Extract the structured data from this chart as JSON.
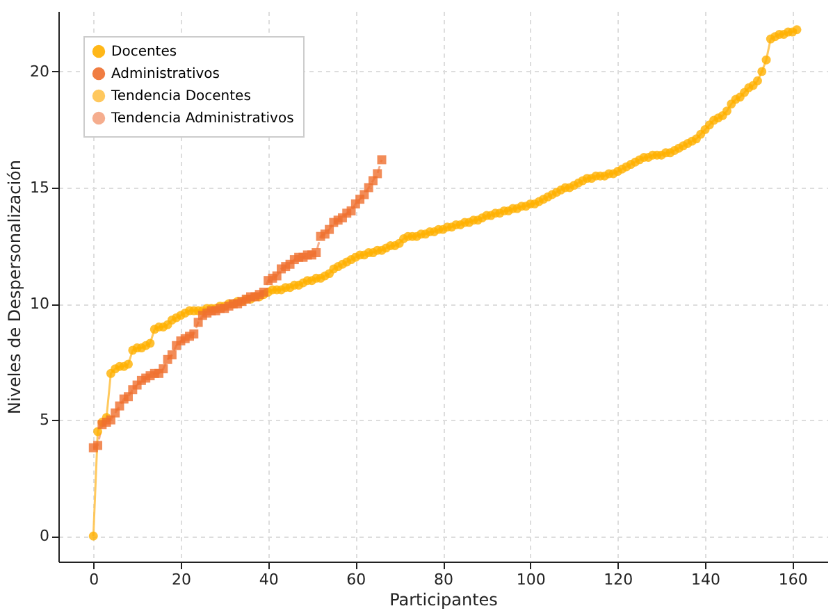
{
  "chart_data": {
    "type": "scatter",
    "xlabel": "Participantes",
    "ylabel": "Niveles de Despersonalización",
    "xlim": [
      -8,
      168
    ],
    "ylim": [
      -1.1,
      22.6
    ],
    "xticks": [
      0,
      20,
      40,
      60,
      80,
      100,
      120,
      140,
      160
    ],
    "yticks": [
      0,
      5,
      10,
      15,
      20
    ],
    "grid": true,
    "legend": "top left",
    "series": [
      {
        "name": "Docentes",
        "marker": "circle",
        "color": "#ffb000",
        "x": [
          0,
          1,
          2,
          3,
          4,
          5,
          6,
          7,
          8,
          9,
          10,
          11,
          12,
          13,
          14,
          15,
          16,
          17,
          18,
          19,
          20,
          21,
          22,
          23,
          24,
          25,
          26,
          27,
          28,
          29,
          30,
          31,
          32,
          33,
          34,
          35,
          36,
          37,
          38,
          39,
          40,
          41,
          42,
          43,
          44,
          45,
          46,
          47,
          48,
          49,
          50,
          51,
          52,
          53,
          54,
          55,
          56,
          57,
          58,
          59,
          60,
          61,
          62,
          63,
          64,
          65,
          66,
          67,
          68,
          69,
          70,
          71,
          72,
          73,
          74,
          75,
          76,
          77,
          78,
          79,
          80,
          81,
          82,
          83,
          84,
          85,
          86,
          87,
          88,
          89,
          90,
          91,
          92,
          93,
          94,
          95,
          96,
          97,
          98,
          99,
          100,
          101,
          102,
          103,
          104,
          105,
          106,
          107,
          108,
          109,
          110,
          111,
          112,
          113,
          114,
          115,
          116,
          117,
          118,
          119,
          120,
          121,
          122,
          123,
          124,
          125,
          126,
          127,
          128,
          129,
          130,
          131,
          132,
          133,
          134,
          135,
          136,
          137,
          138,
          139,
          140,
          141,
          142,
          143,
          144,
          145,
          146,
          147,
          148,
          149,
          150,
          151,
          152,
          153,
          154,
          155,
          156,
          157,
          158,
          159,
          160,
          161
        ],
        "values": [
          0,
          4.5,
          4.9,
          5.1,
          7.0,
          7.2,
          7.3,
          7.3,
          7.4,
          8.0,
          8.1,
          8.1,
          8.2,
          8.3,
          8.9,
          9.0,
          9.0,
          9.1,
          9.3,
          9.4,
          9.5,
          9.6,
          9.7,
          9.7,
          9.7,
          9.7,
          9.8,
          9.8,
          9.8,
          9.9,
          9.9,
          10.0,
          10.0,
          10.1,
          10.1,
          10.2,
          10.2,
          10.3,
          10.3,
          10.4,
          10.5,
          10.6,
          10.6,
          10.6,
          10.7,
          10.7,
          10.8,
          10.8,
          10.9,
          11.0,
          11.0,
          11.1,
          11.1,
          11.2,
          11.3,
          11.5,
          11.6,
          11.7,
          11.8,
          11.9,
          12.0,
          12.1,
          12.1,
          12.2,
          12.2,
          12.3,
          12.3,
          12.4,
          12.5,
          12.5,
          12.6,
          12.8,
          12.9,
          12.9,
          12.9,
          13.0,
          13.0,
          13.1,
          13.1,
          13.2,
          13.2,
          13.3,
          13.3,
          13.4,
          13.4,
          13.5,
          13.5,
          13.6,
          13.6,
          13.7,
          13.8,
          13.8,
          13.9,
          13.9,
          14.0,
          14.0,
          14.1,
          14.1,
          14.2,
          14.2,
          14.3,
          14.3,
          14.4,
          14.5,
          14.6,
          14.7,
          14.8,
          14.9,
          15.0,
          15.0,
          15.1,
          15.2,
          15.3,
          15.4,
          15.4,
          15.5,
          15.5,
          15.5,
          15.6,
          15.6,
          15.7,
          15.8,
          15.9,
          16.0,
          16.1,
          16.2,
          16.3,
          16.3,
          16.4,
          16.4,
          16.4,
          16.5,
          16.5,
          16.6,
          16.7,
          16.8,
          16.9,
          17.0,
          17.1,
          17.3,
          17.5,
          17.7,
          17.9,
          18.0,
          18.1,
          18.3,
          18.6,
          18.8,
          18.9,
          19.1,
          19.3,
          19.4,
          19.6,
          20.0,
          20.5,
          21.4,
          21.5,
          21.6,
          21.6,
          21.7,
          21.7,
          21.8
        ]
      },
      {
        "name": "Administrativos",
        "marker": "square",
        "color": "#ef6f2e",
        "x": [
          0,
          1,
          2,
          3,
          4,
          5,
          6,
          7,
          8,
          9,
          10,
          11,
          12,
          13,
          14,
          15,
          16,
          17,
          18,
          19,
          20,
          21,
          22,
          23,
          24,
          25,
          26,
          27,
          28,
          29,
          30,
          31,
          32,
          33,
          34,
          35,
          36,
          37,
          38,
          39,
          40,
          41,
          42,
          43,
          44,
          45,
          46,
          47,
          48,
          49,
          50,
          51,
          52,
          53,
          54,
          55,
          56,
          57,
          58,
          59,
          60,
          61,
          62,
          63,
          64,
          65,
          66
        ],
        "values": [
          3.8,
          3.9,
          4.8,
          4.9,
          5.0,
          5.3,
          5.6,
          5.9,
          6.0,
          6.3,
          6.5,
          6.7,
          6.8,
          6.9,
          7.0,
          7.0,
          7.2,
          7.6,
          7.8,
          8.2,
          8.4,
          8.5,
          8.6,
          8.7,
          9.2,
          9.5,
          9.6,
          9.7,
          9.7,
          9.8,
          9.8,
          9.9,
          10.0,
          10.0,
          10.1,
          10.2,
          10.3,
          10.3,
          10.4,
          10.5,
          11.0,
          11.1,
          11.2,
          11.5,
          11.6,
          11.7,
          11.9,
          12.0,
          12.0,
          12.1,
          12.1,
          12.2,
          12.9,
          13.0,
          13.2,
          13.5,
          13.6,
          13.7,
          13.9,
          14.0,
          14.3,
          14.5,
          14.7,
          15.0,
          15.3,
          15.6,
          16.2
        ]
      },
      {
        "name": "Tendencia Docentes",
        "type": "line",
        "line_style": "solid",
        "color": "#ffc34d",
        "x": [
          0,
          1,
          2,
          3,
          4,
          5,
          6,
          7,
          8,
          9,
          10,
          11,
          12,
          13,
          14,
          15,
          16,
          17,
          18,
          19,
          20,
          21,
          22,
          23,
          24,
          25,
          26,
          27,
          28,
          29,
          30,
          31,
          32,
          33,
          34,
          35,
          36,
          37,
          38,
          39,
          40,
          41,
          42,
          43,
          44,
          45,
          46,
          47,
          48,
          49,
          50,
          51,
          52,
          53,
          54,
          55,
          56,
          57,
          58,
          59,
          60,
          61,
          62,
          63,
          64,
          65,
          66,
          67,
          68,
          69,
          70,
          71,
          72,
          73,
          74,
          75,
          76,
          77,
          78,
          79,
          80,
          81,
          82,
          83,
          84,
          85,
          86,
          87,
          88,
          89,
          90,
          91,
          92,
          93,
          94,
          95,
          96,
          97,
          98,
          99,
          100,
          101,
          102,
          103,
          104,
          105,
          106,
          107,
          108,
          109,
          110,
          111,
          112,
          113,
          114,
          115,
          116,
          117,
          118,
          119,
          120,
          121,
          122,
          123,
          124,
          125,
          126,
          127,
          128,
          129,
          130,
          131,
          132,
          133,
          134,
          135,
          136,
          137,
          138,
          139,
          140,
          141,
          142,
          143,
          144,
          145,
          146,
          147,
          148,
          149,
          150,
          151,
          152,
          153,
          154,
          155,
          156,
          157,
          158,
          159,
          160,
          161
        ],
        "values": [
          0,
          4.5,
          4.9,
          5.1,
          7.0,
          7.2,
          7.3,
          7.3,
          7.4,
          8.0,
          8.1,
          8.1,
          8.2,
          8.3,
          8.9,
          9.0,
          9.0,
          9.1,
          9.3,
          9.4,
          9.5,
          9.6,
          9.7,
          9.7,
          9.7,
          9.7,
          9.8,
          9.8,
          9.8,
          9.9,
          9.9,
          10.0,
          10.0,
          10.1,
          10.1,
          10.2,
          10.2,
          10.3,
          10.3,
          10.4,
          10.5,
          10.6,
          10.6,
          10.6,
          10.7,
          10.7,
          10.8,
          10.8,
          10.9,
          11.0,
          11.0,
          11.1,
          11.1,
          11.2,
          11.3,
          11.5,
          11.6,
          11.7,
          11.8,
          11.9,
          12.0,
          12.1,
          12.1,
          12.2,
          12.2,
          12.3,
          12.3,
          12.4,
          12.5,
          12.5,
          12.6,
          12.8,
          12.9,
          12.9,
          12.9,
          13.0,
          13.0,
          13.1,
          13.1,
          13.2,
          13.2,
          13.3,
          13.3,
          13.4,
          13.4,
          13.5,
          13.5,
          13.6,
          13.6,
          13.7,
          13.8,
          13.8,
          13.9,
          13.9,
          14.0,
          14.0,
          14.1,
          14.1,
          14.2,
          14.2,
          14.3,
          14.3,
          14.4,
          14.5,
          14.6,
          14.7,
          14.8,
          14.9,
          15.0,
          15.0,
          15.1,
          15.2,
          15.3,
          15.4,
          15.4,
          15.5,
          15.5,
          15.5,
          15.6,
          15.6,
          15.7,
          15.8,
          15.9,
          16.0,
          16.1,
          16.2,
          16.3,
          16.3,
          16.4,
          16.4,
          16.4,
          16.5,
          16.5,
          16.6,
          16.7,
          16.8,
          16.9,
          17.0,
          17.1,
          17.3,
          17.5,
          17.7,
          17.9,
          18.0,
          18.1,
          18.3,
          18.6,
          18.8,
          18.9,
          19.1,
          19.3,
          19.4,
          19.6,
          20.0,
          20.5,
          21.4,
          21.5,
          21.6,
          21.6,
          21.7,
          21.7,
          21.8
        ]
      },
      {
        "name": "Tendencia Administrativos",
        "type": "line",
        "line_style": "dashed",
        "color": "#f4a582",
        "x": [
          0,
          1,
          2,
          3,
          4,
          5,
          6,
          7,
          8,
          9,
          10,
          11,
          12,
          13,
          14,
          15,
          16,
          17,
          18,
          19,
          20,
          21,
          22,
          23,
          24,
          25,
          26,
          27,
          28,
          29,
          30,
          31,
          32,
          33,
          34,
          35,
          36,
          37,
          38,
          39,
          40,
          41,
          42,
          43,
          44,
          45,
          46,
          47,
          48,
          49,
          50,
          51,
          52,
          53,
          54,
          55,
          56,
          57,
          58,
          59,
          60,
          61,
          62,
          63,
          64,
          65,
          66
        ],
        "values": [
          3.8,
          3.9,
          4.8,
          4.9,
          5.0,
          5.3,
          5.6,
          5.9,
          6.0,
          6.3,
          6.5,
          6.7,
          6.8,
          6.9,
          7.0,
          7.0,
          7.2,
          7.6,
          7.8,
          8.2,
          8.4,
          8.5,
          8.6,
          8.7,
          9.2,
          9.5,
          9.6,
          9.7,
          9.7,
          9.8,
          9.8,
          9.9,
          10.0,
          10.0,
          10.1,
          10.2,
          10.3,
          10.3,
          10.4,
          10.5,
          11.0,
          11.1,
          11.2,
          11.5,
          11.6,
          11.7,
          11.9,
          12.0,
          12.0,
          12.1,
          12.1,
          12.2,
          12.9,
          13.0,
          13.2,
          13.5,
          13.6,
          13.7,
          13.9,
          14.0,
          14.3,
          14.5,
          14.7,
          15.0,
          15.3,
          15.6,
          16.2
        ]
      }
    ]
  }
}
